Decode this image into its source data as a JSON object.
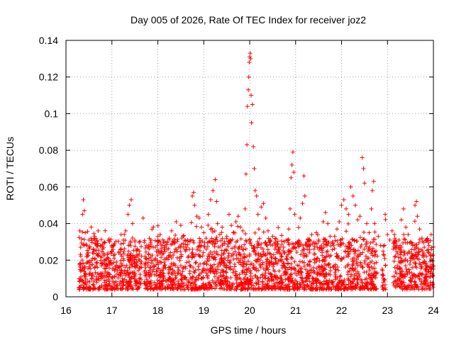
{
  "chart_data": {
    "type": "scatter",
    "title": "Day 005 of 2026, Rate Of TEC Index for receiver joz2",
    "xlabel": "GPS time / hours",
    "ylabel": "ROTI / TECUs",
    "xlim": [
      16,
      24
    ],
    "ylim": [
      0,
      0.14
    ],
    "x_ticks": [
      "16",
      "17",
      "18",
      "19",
      "20",
      "21",
      "22",
      "23",
      "24"
    ],
    "y_ticks": [
      "0",
      "0.02",
      "0.04",
      "0.06",
      "0.08",
      "0.1",
      "0.12",
      "0.14"
    ],
    "grid": true,
    "marker": "+",
    "color": "#ff0000",
    "series": [
      {
        "name": "ROTI",
        "points": [
          [
            16.3,
            0.036
          ],
          [
            16.32,
            0.027
          ],
          [
            16.35,
            0.018
          ],
          [
            16.36,
            0.045
          ],
          [
            16.38,
            0.053
          ],
          [
            16.4,
            0.047
          ],
          [
            16.42,
            0.035
          ],
          [
            16.45,
            0.028
          ],
          [
            16.5,
            0.031
          ],
          [
            16.55,
            0.038
          ],
          [
            16.58,
            0.024
          ],
          [
            16.62,
            0.033
          ],
          [
            16.65,
            0.029
          ],
          [
            16.7,
            0.036
          ],
          [
            16.75,
            0.022
          ],
          [
            16.8,
            0.026
          ],
          [
            16.85,
            0.02
          ],
          [
            16.9,
            0.023
          ],
          [
            16.95,
            0.018
          ],
          [
            17.0,
            0.025
          ],
          [
            17.05,
            0.021
          ],
          [
            17.1,
            0.019
          ],
          [
            17.15,
            0.024
          ],
          [
            17.2,
            0.034
          ],
          [
            17.25,
            0.031
          ],
          [
            17.3,
            0.036
          ],
          [
            17.35,
            0.045
          ],
          [
            17.38,
            0.05
          ],
          [
            17.42,
            0.053
          ],
          [
            17.45,
            0.04
          ],
          [
            17.5,
            0.03
          ],
          [
            17.55,
            0.026
          ],
          [
            17.6,
            0.025
          ],
          [
            17.68,
            0.043
          ],
          [
            17.75,
            0.028
          ],
          [
            17.8,
            0.023
          ],
          [
            17.85,
            0.031
          ],
          [
            17.9,
            0.027
          ],
          [
            17.95,
            0.021
          ],
          [
            18.0,
            0.033
          ],
          [
            18.05,
            0.034
          ],
          [
            18.1,
            0.028
          ],
          [
            18.15,
            0.03
          ],
          [
            18.2,
            0.026
          ],
          [
            18.25,
            0.032
          ],
          [
            18.3,
            0.036
          ],
          [
            18.35,
            0.029
          ],
          [
            18.4,
            0.041
          ],
          [
            18.45,
            0.027
          ],
          [
            18.5,
            0.039
          ],
          [
            18.55,
            0.033
          ],
          [
            18.6,
            0.025
          ],
          [
            18.65,
            0.031
          ],
          [
            18.7,
            0.03
          ],
          [
            18.75,
            0.055
          ],
          [
            18.78,
            0.057
          ],
          [
            18.8,
            0.05
          ],
          [
            18.85,
            0.044
          ],
          [
            18.9,
            0.043
          ],
          [
            18.95,
            0.038
          ],
          [
            19.0,
            0.035
          ],
          [
            19.05,
            0.032
          ],
          [
            19.1,
            0.045
          ],
          [
            19.15,
            0.053
          ],
          [
            19.2,
            0.058
          ],
          [
            19.25,
            0.064
          ],
          [
            19.28,
            0.052
          ],
          [
            19.3,
            0.04
          ],
          [
            19.35,
            0.034
          ],
          [
            19.4,
            0.038
          ],
          [
            19.45,
            0.03
          ],
          [
            19.5,
            0.033
          ],
          [
            19.55,
            0.045
          ],
          [
            19.6,
            0.039
          ],
          [
            19.65,
            0.035
          ],
          [
            19.7,
            0.041
          ],
          [
            19.75,
            0.044
          ],
          [
            19.8,
            0.038
          ],
          [
            19.85,
            0.036
          ],
          [
            19.9,
            0.048
          ],
          [
            19.92,
            0.067
          ],
          [
            19.94,
            0.083
          ],
          [
            19.95,
            0.104
          ],
          [
            19.97,
            0.113
          ],
          [
            19.98,
            0.12
          ],
          [
            19.99,
            0.128
          ],
          [
            20.0,
            0.131
          ],
          [
            20.01,
            0.133
          ],
          [
            20.02,
            0.13
          ],
          [
            20.03,
            0.11
          ],
          [
            20.04,
            0.095
          ],
          [
            20.06,
            0.105
          ],
          [
            20.08,
            0.082
          ],
          [
            20.1,
            0.07
          ],
          [
            20.12,
            0.058
          ],
          [
            20.15,
            0.055
          ],
          [
            20.18,
            0.045
          ],
          [
            20.2,
            0.037
          ],
          [
            20.25,
            0.049
          ],
          [
            20.3,
            0.051
          ],
          [
            20.35,
            0.043
          ],
          [
            20.4,
            0.036
          ],
          [
            20.45,
            0.031
          ],
          [
            20.5,
            0.033
          ],
          [
            20.55,
            0.026
          ],
          [
            20.6,
            0.029
          ],
          [
            20.65,
            0.024
          ],
          [
            20.7,
            0.022
          ],
          [
            20.75,
            0.024
          ],
          [
            20.8,
            0.021
          ],
          [
            20.85,
            0.037
          ],
          [
            20.88,
            0.048
          ],
          [
            20.9,
            0.065
          ],
          [
            20.92,
            0.072
          ],
          [
            20.94,
            0.079
          ],
          [
            20.96,
            0.068
          ],
          [
            20.98,
            0.045
          ],
          [
            21.05,
            0.03
          ],
          [
            21.1,
            0.043
          ],
          [
            21.15,
            0.051
          ],
          [
            21.18,
            0.066
          ],
          [
            21.2,
            0.055
          ],
          [
            21.25,
            0.03
          ],
          [
            21.3,
            0.028
          ],
          [
            21.35,
            0.034
          ],
          [
            21.4,
            0.026
          ],
          [
            21.45,
            0.035
          ],
          [
            21.5,
            0.031
          ],
          [
            21.55,
            0.027
          ],
          [
            21.6,
            0.041
          ],
          [
            21.65,
            0.046
          ],
          [
            21.7,
            0.04
          ],
          [
            21.75,
            0.033
          ],
          [
            21.8,
            0.03
          ],
          [
            21.85,
            0.033
          ],
          [
            21.9,
            0.037
          ],
          [
            21.95,
            0.041
          ],
          [
            22.0,
            0.05
          ],
          [
            22.05,
            0.053
          ],
          [
            22.1,
            0.048
          ],
          [
            22.15,
            0.045
          ],
          [
            22.2,
            0.06
          ],
          [
            22.25,
            0.055
          ],
          [
            22.3,
            0.05
          ],
          [
            22.35,
            0.042
          ],
          [
            22.4,
            0.044
          ],
          [
            22.45,
            0.076
          ],
          [
            22.48,
            0.07
          ],
          [
            22.5,
            0.062
          ],
          [
            22.55,
            0.04
          ],
          [
            22.6,
            0.035
          ],
          [
            22.65,
            0.048
          ],
          [
            22.67,
            0.058
          ],
          [
            22.7,
            0.063
          ],
          [
            22.72,
            0.04
          ],
          [
            22.75,
            0.025
          ],
          [
            22.8,
            0.033
          ],
          [
            22.85,
            0.028
          ],
          [
            22.95,
            0.045
          ],
          [
            23.0,
            0.034
          ],
          [
            23.05,
            0.031
          ],
          [
            23.1,
            0.036
          ],
          [
            23.15,
            0.034
          ],
          [
            23.2,
            0.028
          ],
          [
            23.25,
            0.031
          ],
          [
            23.3,
            0.042
          ],
          [
            23.35,
            0.048
          ],
          [
            23.4,
            0.038
          ],
          [
            23.45,
            0.034
          ],
          [
            23.5,
            0.03
          ],
          [
            23.55,
            0.028
          ],
          [
            23.6,
            0.05
          ],
          [
            23.63,
            0.052
          ],
          [
            23.65,
            0.044
          ],
          [
            23.7,
            0.037
          ],
          [
            23.75,
            0.032
          ],
          [
            23.8,
            0.027
          ],
          [
            23.85,
            0.031
          ],
          [
            23.9,
            0.028
          ],
          [
            23.95,
            0.034
          ]
        ]
      }
    ],
    "dense_band": {
      "note": "dense baseline cloud of ROTI points",
      "ranges": [
        [
          16.28,
          17.65
        ],
        [
          17.7,
          21.0
        ],
        [
          21.02,
          22.78
        ],
        [
          22.88,
          22.96
        ],
        [
          23.12,
          24.0
        ]
      ],
      "typical_min": 0.004,
      "typical_max": 0.032,
      "count": 2600
    }
  }
}
